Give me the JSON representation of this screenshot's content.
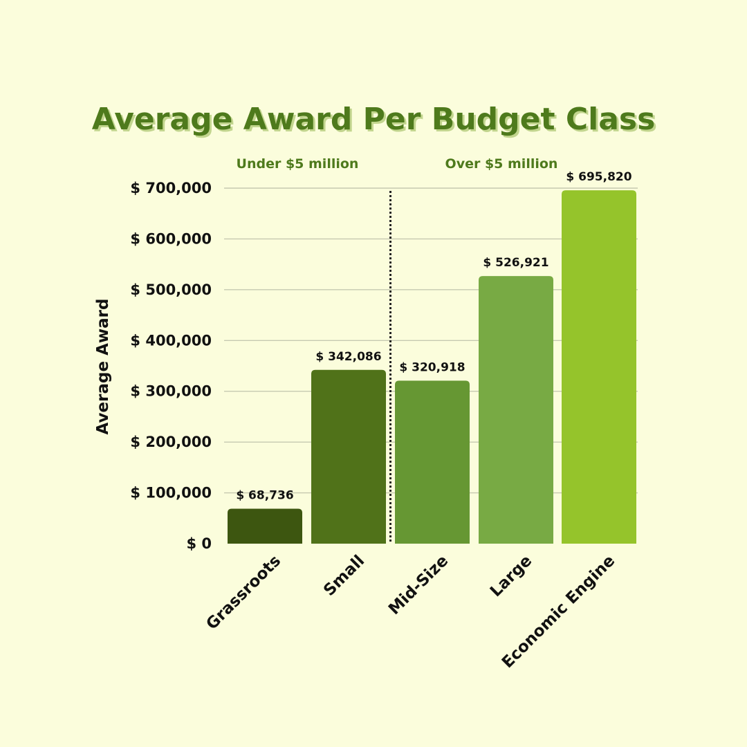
{
  "chart_data": {
    "type": "bar",
    "title": "Average Award Per Budget Class",
    "ylabel": "Average Award",
    "xlabel": "",
    "categories": [
      "Grassroots",
      "Small",
      "Mid-Size",
      "Large",
      "Economic Engine"
    ],
    "values": [
      68736,
      342086,
      320918,
      526921,
      695820
    ],
    "value_labels": [
      "$ 68,736",
      "$ 342,086",
      "$ 320,918",
      "$ 526,921",
      "$ 695,820"
    ],
    "ylim": [
      0,
      700000
    ],
    "yticks": [
      0,
      100000,
      200000,
      300000,
      400000,
      500000,
      600000,
      700000
    ],
    "ytick_labels": [
      "$ 0",
      "$ 100,000",
      "$ 200,000",
      "$ 300,000",
      "$ 400,000",
      "$ 500,000",
      "$ 600,000",
      "$ 700,000"
    ],
    "grid": true,
    "group_labels": [
      "Under $5 million",
      "Over $5 million"
    ],
    "group_divider_after_index": 1,
    "bar_colors": [
      "#3d5610",
      "#507219",
      "#669733",
      "#78aa44",
      "#95c42b"
    ],
    "title_color": "#4e7a1c",
    "background": "#fbfddc"
  }
}
